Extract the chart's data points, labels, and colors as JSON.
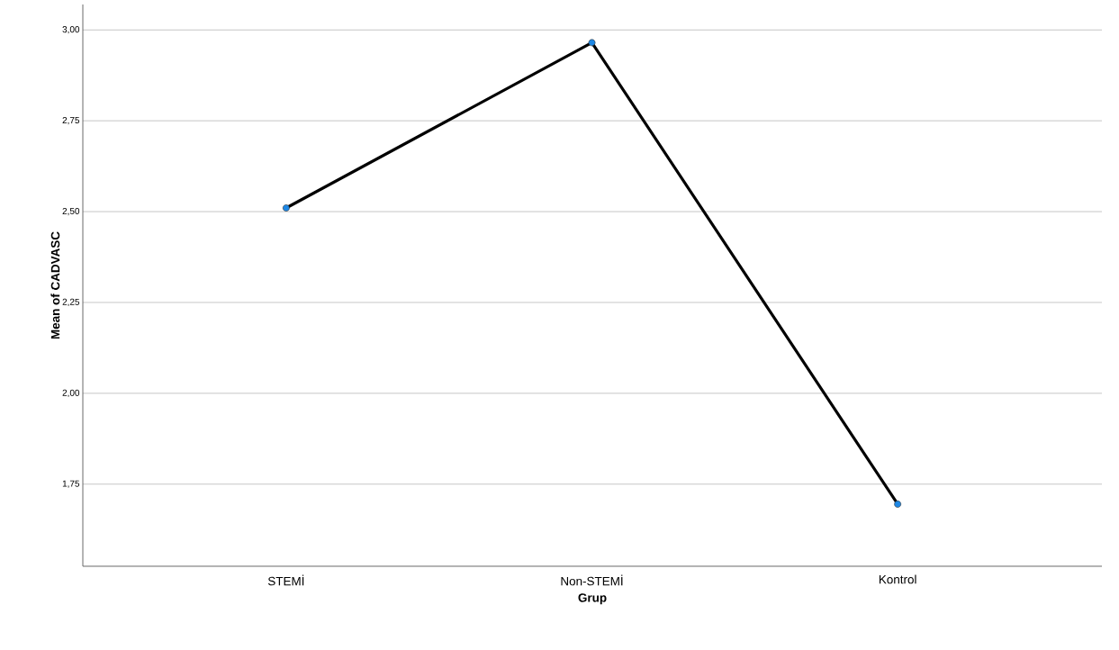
{
  "chart_data": {
    "type": "line",
    "xlabel": "Grup",
    "ylabel": "Mean of CADVASC",
    "categories": [
      "STEMİ",
      "Non-STEMİ",
      "Kontrol"
    ],
    "series": [
      {
        "color": "#000000",
        "colors": [
          "#1e88e5",
          "#1e88e5",
          "#1e88e5"
        ],
        "values": [
          2.51,
          2.965,
          1.695
        ]
      }
    ],
    "ylim": [
      1.524,
      3.07
    ],
    "yticks": [
      {
        "value": 1.75,
        "label": "1,75"
      },
      {
        "value": 2.0,
        "label": "2,00"
      },
      {
        "value": 2.25,
        "label": "2,25"
      },
      {
        "value": 2.5,
        "label": "2,50"
      },
      {
        "value": 2.75,
        "label": "2,75"
      },
      {
        "value": 3.0,
        "label": "3,00"
      }
    ],
    "grid": "y",
    "marker": "circle",
    "line_style": "solid"
  }
}
